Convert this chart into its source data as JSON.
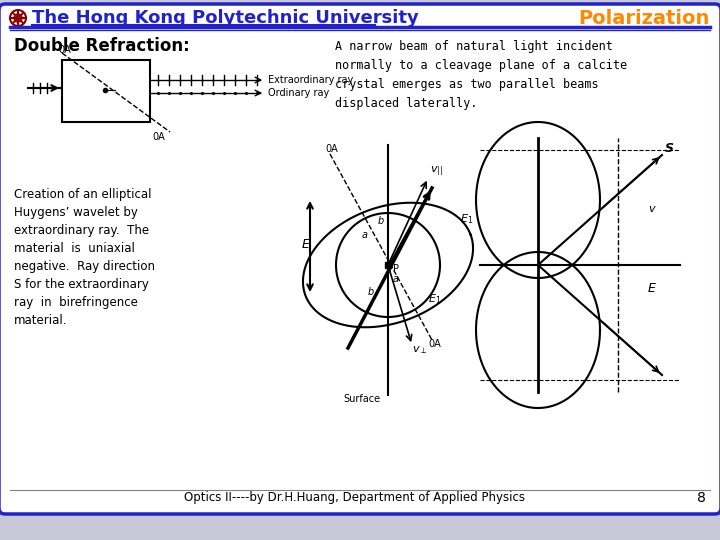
{
  "title": "The Hong Kong Polytechnic University",
  "title_color": "#2222CC",
  "polarization_text": "Polarization",
  "polarization_color": "#FF8800",
  "double_refraction_title": "Double Refraction:",
  "description_text": "A narrow beam of natural light incident\nnormally to a cleavage plane of a calcite\ncrystal emerges as two parallel beams\ndisplaced laterally.",
  "creation_text": "Creation of an elliptical\nHuygens’ wavelet by\nextraordinary ray.  The\nmaterial  is  uniaxial\nnegative.  Ray direction\nS for the extraordinary\nray  in  birefringence\nmaterial.",
  "footer_text": "Optics II----by Dr.H.Huang, Department of Applied Physics",
  "page_number": "8",
  "bg_color": "#FFFFFF",
  "border_color": "#2222CC",
  "header_line_color": "#2222CC",
  "logo_color": "#8B0000"
}
